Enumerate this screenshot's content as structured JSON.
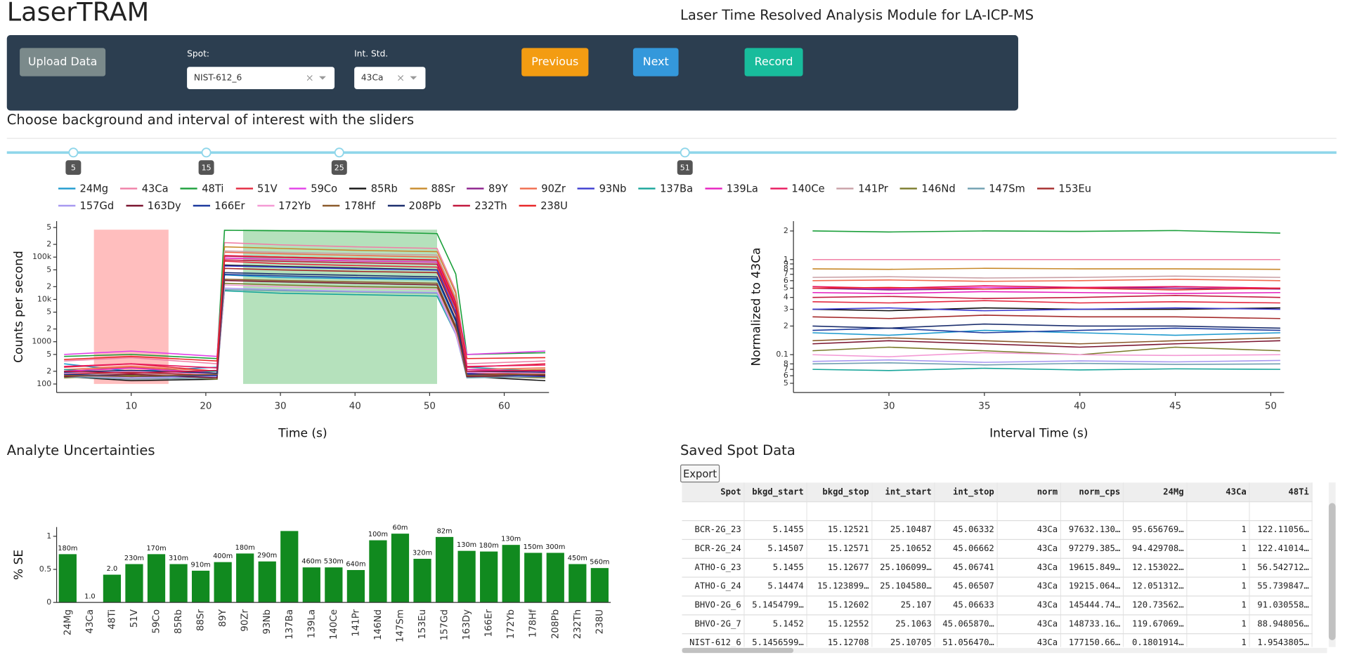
{
  "header": {
    "title": "LaserTRAM",
    "subtitle": "Laser Time Resolved Analysis Module for LA-ICP-MS"
  },
  "controls": {
    "upload": "Upload Data",
    "spot_label": "Spot:",
    "spot_value": "NIST-612_6",
    "int_std_label": "Int. Std.",
    "int_std_value": "43Ca",
    "previous": "Previous",
    "next": "Next",
    "record": "Record"
  },
  "instructions": "Choose background and interval of interest with the sliders",
  "slider": {
    "range": [
      0,
      100
    ],
    "values": [
      5,
      15,
      25,
      51
    ],
    "track_color": "#8fd6ea",
    "background_color": "#ffb3b3",
    "interval_color": "#a8dcb0"
  },
  "chart_data": [
    {
      "type": "line",
      "xlabel": "Time (s)",
      "ylabel": "Counts per second",
      "log_y": true,
      "xlim": [
        0,
        66
      ],
      "ylim": [
        63,
        710000
      ],
      "xticks": [
        10,
        20,
        30,
        40,
        50,
        60
      ],
      "yticks": [
        100,
        {
          "value": 200,
          "label": "2"
        },
        {
          "value": 500,
          "label": "5"
        },
        1000,
        {
          "value": 2000,
          "label": "2"
        },
        {
          "value": 5000,
          "label": "5"
        },
        {
          "value": 10000,
          "label": "10k"
        },
        {
          "value": 20000,
          "label": "2"
        },
        {
          "value": 50000,
          "label": "5"
        },
        {
          "value": 100000,
          "label": "100k"
        },
        {
          "value": 200000,
          "label": "2"
        },
        {
          "value": 500000,
          "label": "5"
        }
      ],
      "x": [
        1,
        10,
        21.5,
        22.5,
        30,
        40,
        51,
        53.5,
        55,
        65.5
      ],
      "series": [
        {
          "name": "24Mg",
          "color": "#1f9bcf",
          "values": [
            300,
            200,
            250,
            38000,
            33000,
            31000,
            29000,
            3000,
            250,
            200
          ]
        },
        {
          "name": "43Ca",
          "color": "#f07fa6",
          "values": [
            350,
            420,
            300,
            220000,
            195000,
            175000,
            160000,
            16000,
            300,
            350
          ]
        },
        {
          "name": "48Ti",
          "color": "#1a9f3a",
          "values": [
            450,
            500,
            400,
            430000,
            420000,
            400000,
            360000,
            40000,
            500,
            550
          ]
        },
        {
          "name": "51V",
          "color": "#e3283f",
          "values": [
            250,
            300,
            200,
            80000,
            70000,
            63000,
            58000,
            6000,
            250,
            300
          ]
        },
        {
          "name": "59Co",
          "color": "#e23ee8",
          "values": [
            500,
            600,
            450,
            110000,
            100000,
            92000,
            85000,
            9000,
            500,
            600
          ]
        },
        {
          "name": "85Rb",
          "color": "#111111",
          "values": [
            150,
            120,
            130,
            65000,
            60000,
            55000,
            50000,
            5000,
            150,
            120
          ]
        },
        {
          "name": "88Sr",
          "color": "#c88a2b",
          "values": [
            200,
            250,
            180,
            175000,
            160000,
            145000,
            135000,
            14000,
            200,
            220
          ]
        },
        {
          "name": "89Y",
          "color": "#8b1e8b",
          "values": [
            180,
            200,
            150,
            105000,
            98000,
            90000,
            84000,
            8000,
            180,
            160
          ]
        },
        {
          "name": "90Zr",
          "color": "#f06a4c",
          "values": [
            220,
            260,
            200,
            130000,
            120000,
            110000,
            100000,
            10000,
            220,
            240
          ]
        },
        {
          "name": "93Nb",
          "color": "#3b3bd0",
          "values": [
            180,
            150,
            160,
            62000,
            58000,
            53000,
            49000,
            5000,
            180,
            150
          ]
        },
        {
          "name": "137Ba",
          "color": "#17a59a",
          "values": [
            220,
            180,
            200,
            16000,
            14000,
            13000,
            12000,
            1500,
            200,
            180
          ]
        },
        {
          "name": "139La",
          "color": "#e61fbf",
          "values": [
            200,
            240,
            180,
            95000,
            88000,
            81000,
            76000,
            7500,
            220,
            200
          ]
        },
        {
          "name": "140Ce",
          "color": "#e8175d",
          "values": [
            260,
            300,
            240,
            108000,
            100000,
            92000,
            86000,
            8500,
            260,
            280
          ]
        },
        {
          "name": "141Pr",
          "color": "#c9a0a6",
          "values": [
            160,
            180,
            150,
            140000,
            130000,
            120000,
            112000,
            11000,
            170,
            160
          ]
        },
        {
          "name": "146Nd",
          "color": "#7a7a2a",
          "values": [
            140,
            160,
            130,
            24000,
            22000,
            20000,
            19000,
            2000,
            150,
            140
          ]
        },
        {
          "name": "147Sm",
          "color": "#6f9fb0",
          "values": [
            150,
            130,
            140,
            17000,
            16000,
            15000,
            14000,
            1600,
            140,
            150
          ]
        },
        {
          "name": "153Eu",
          "color": "#a52a2a",
          "values": [
            170,
            190,
            160,
            54000,
            50000,
            46000,
            43000,
            4300,
            170,
            180
          ]
        },
        {
          "name": "157Gd",
          "color": "#a899f0",
          "values": [
            160,
            140,
            150,
            18500,
            17000,
            15500,
            14500,
            1500,
            160,
            150
          ]
        },
        {
          "name": "163Dy",
          "color": "#7a1530",
          "values": [
            150,
            170,
            140,
            28000,
            26000,
            24000,
            22000,
            2200,
            150,
            160
          ]
        },
        {
          "name": "166Er",
          "color": "#1d3a9e",
          "values": [
            170,
            150,
            160,
            39000,
            36000,
            33000,
            31000,
            3100,
            170,
            150
          ]
        },
        {
          "name": "172Yb",
          "color": "#f49ad5",
          "values": [
            180,
            200,
            170,
            22000,
            20000,
            18500,
            17000,
            1700,
            190,
            180
          ]
        },
        {
          "name": "178Hf",
          "color": "#8b5a2b",
          "values": [
            160,
            150,
            170,
            30000,
            28000,
            26000,
            24000,
            2400,
            160,
            170
          ]
        },
        {
          "name": "208Pb",
          "color": "#1c2f6e",
          "values": [
            190,
            210,
            180,
            43000,
            40000,
            37000,
            34000,
            3400,
            200,
            190
          ]
        },
        {
          "name": "232Th",
          "color": "#c2193f",
          "values": [
            200,
            180,
            210,
            86000,
            80000,
            74000,
            68000,
            6800,
            200,
            210
          ]
        },
        {
          "name": "238U",
          "color": "#e8292a",
          "values": [
            380,
            450,
            350,
            108000,
            100000,
            93000,
            86000,
            8600,
            400,
            420
          ]
        }
      ]
    },
    {
      "type": "line",
      "xlabel": "Interval Time (s)",
      "ylabel": "Normalized to 43Ca",
      "log_y": true,
      "xlim": [
        25,
        50.7
      ],
      "ylim": [
        0.04,
        2.54
      ],
      "xticks": [
        30,
        35,
        40,
        45,
        50
      ],
      "yticks": [
        {
          "value": 0.05,
          "label": "5"
        },
        {
          "value": 0.06,
          "label": "6"
        },
        {
          "value": 0.07,
          "label": "7"
        },
        {
          "value": 0.08,
          "label": "8"
        },
        0.1,
        {
          "value": 0.2,
          "label": "2"
        },
        {
          "value": 0.3,
          "label": "3"
        },
        {
          "value": 0.4,
          "label": "4"
        },
        {
          "value": 0.5,
          "label": "5"
        },
        {
          "value": 0.6,
          "label": "6"
        },
        {
          "value": 0.7,
          "label": "7"
        },
        {
          "value": 0.8,
          "label": "8"
        },
        {
          "value": 0.9,
          "label": "9"
        },
        1,
        2
      ],
      "x": [
        26,
        30,
        35,
        40,
        45,
        50.5
      ],
      "series": [
        {
          "name": "24Mg",
          "color": "#1f9bcf",
          "values": [
            0.17,
            0.16,
            0.18,
            0.17,
            0.16,
            0.17
          ]
        },
        {
          "name": "43Ca",
          "color": "#f07fa6",
          "values": [
            1,
            1,
            1,
            1,
            1,
            1
          ]
        },
        {
          "name": "48Ti",
          "color": "#1a9f3a",
          "values": [
            2.0,
            1.95,
            2.0,
            1.98,
            2.02,
            1.9
          ]
        },
        {
          "name": "51V",
          "color": "#e3283f",
          "values": [
            0.36,
            0.35,
            0.37,
            0.35,
            0.36,
            0.35
          ]
        },
        {
          "name": "59Co",
          "color": "#e23ee8",
          "values": [
            0.5,
            0.49,
            0.51,
            0.5,
            0.52,
            0.5
          ]
        },
        {
          "name": "85Rb",
          "color": "#111111",
          "values": [
            0.3,
            0.29,
            0.31,
            0.3,
            0.3,
            0.31
          ]
        },
        {
          "name": "88Sr",
          "color": "#c88a2b",
          "values": [
            0.8,
            0.79,
            0.81,
            0.8,
            0.8,
            0.79
          ]
        },
        {
          "name": "89Y",
          "color": "#8b1e8b",
          "values": [
            0.5,
            0.48,
            0.49,
            0.51,
            0.5,
            0.49
          ]
        },
        {
          "name": "90Zr",
          "color": "#f06a4c",
          "values": [
            0.6,
            0.61,
            0.59,
            0.6,
            0.62,
            0.6
          ]
        },
        {
          "name": "93Nb",
          "color": "#3b3bd0",
          "values": [
            0.3,
            0.31,
            0.29,
            0.3,
            0.31,
            0.3
          ]
        },
        {
          "name": "137Ba",
          "color": "#17a59a",
          "values": [
            0.07,
            0.068,
            0.072,
            0.069,
            0.071,
            0.07
          ]
        },
        {
          "name": "139La",
          "color": "#e61fbf",
          "values": [
            0.45,
            0.44,
            0.46,
            0.45,
            0.44,
            0.45
          ]
        },
        {
          "name": "140Ce",
          "color": "#e8175d",
          "values": [
            0.52,
            0.5,
            0.53,
            0.51,
            0.52,
            0.5
          ]
        },
        {
          "name": "141Pr",
          "color": "#c9a0a6",
          "values": [
            0.65,
            0.66,
            0.64,
            0.65,
            0.67,
            0.65
          ]
        },
        {
          "name": "146Nd",
          "color": "#7a7a2a",
          "values": [
            0.11,
            0.12,
            0.11,
            0.1,
            0.12,
            0.11
          ]
        },
        {
          "name": "147Sm",
          "color": "#6f9fb0",
          "values": [
            0.08,
            0.082,
            0.078,
            0.081,
            0.079,
            0.08
          ]
        },
        {
          "name": "153Eu",
          "color": "#a52a2a",
          "values": [
            0.25,
            0.24,
            0.26,
            0.25,
            0.25,
            0.24
          ]
        },
        {
          "name": "157Gd",
          "color": "#a899f0",
          "values": [
            0.085,
            0.088,
            0.083,
            0.086,
            0.084,
            0.087
          ]
        },
        {
          "name": "163Dy",
          "color": "#7a1530",
          "values": [
            0.13,
            0.14,
            0.13,
            0.12,
            0.13,
            0.14
          ]
        },
        {
          "name": "166Er",
          "color": "#1d3a9e",
          "values": [
            0.18,
            0.19,
            0.17,
            0.18,
            0.19,
            0.18
          ]
        },
        {
          "name": "172Yb",
          "color": "#f49ad5",
          "values": [
            0.1,
            0.095,
            0.105,
            0.1,
            0.098,
            0.1
          ]
        },
        {
          "name": "178Hf",
          "color": "#8b5a2b",
          "values": [
            0.14,
            0.15,
            0.14,
            0.13,
            0.14,
            0.15
          ]
        },
        {
          "name": "208Pb",
          "color": "#1c2f6e",
          "values": [
            0.2,
            0.19,
            0.21,
            0.2,
            0.2,
            0.19
          ]
        },
        {
          "name": "232Th",
          "color": "#c2193f",
          "values": [
            0.4,
            0.41,
            0.39,
            0.4,
            0.42,
            0.4
          ]
        },
        {
          "name": "238U",
          "color": "#e8292a",
          "values": [
            0.5,
            0.51,
            0.49,
            0.5,
            0.48,
            0.5
          ]
        }
      ]
    },
    {
      "type": "bar",
      "title": "Analyte Uncertainties",
      "ylabel": "% SE",
      "color": "#118a1f",
      "ylim": [
        0,
        1.14
      ],
      "yticks": [
        0,
        0.5,
        1
      ],
      "categories": [
        "24Mg",
        "43Ca",
        "48Ti",
        "51V",
        "59Co",
        "85Rb",
        "88Sr",
        "89Y",
        "90Zr",
        "93Nb",
        "137Ba",
        "139La",
        "140Ce",
        "141Pr",
        "146Nd",
        "147Sm",
        "153Eu",
        "157Gd",
        "163Dy",
        "166Er",
        "172Yb",
        "178Hf",
        "208Pb",
        "232Th",
        "238U"
      ],
      "values": [
        0.73,
        0,
        0.42,
        0.58,
        0.73,
        0.58,
        0.48,
        0.61,
        0.74,
        0.62,
        1.08,
        0.53,
        0.53,
        0.49,
        0.94,
        1.04,
        0.66,
        0.99,
        0.78,
        0.77,
        0.87,
        0.75,
        0.75,
        0.58,
        0.52
      ],
      "bar_annotations": [
        "180m",
        "1.0",
        "2.0",
        "230m",
        "170m",
        "310m",
        "910m",
        "400m",
        "180m",
        "290m",
        null,
        "460m",
        "530m",
        "640m",
        "100m",
        "60m",
        "320m",
        "82m",
        "130m",
        "180m",
        "130m",
        "150m",
        "300m",
        "450m",
        "560m"
      ]
    }
  ],
  "table": {
    "title": "Saved Spot Data",
    "export": "Export",
    "columns": [
      "Spot",
      "bkgd_start",
      "bkgd_stop",
      "int_start",
      "int_stop",
      "norm",
      "norm_cps",
      "24Mg",
      "43Ca",
      "48Ti"
    ],
    "rows": [
      [
        "BCR-2G_23",
        "5.1455",
        "15.12521",
        "25.10487",
        "45.06332",
        "43Ca",
        "97632.130…",
        "95.656769…",
        "1",
        "122.11056…"
      ],
      [
        "BCR-2G_24",
        "5.14507",
        "15.12571",
        "25.10652",
        "45.06662",
        "43Ca",
        "97279.385…",
        "94.429708…",
        "1",
        "122.41014…"
      ],
      [
        "ATHO-G_23",
        "5.1455",
        "15.12677",
        "25.106099…",
        "45.06741",
        "43Ca",
        "19615.849…",
        "12.153022…",
        "1",
        "56.542712…"
      ],
      [
        "ATHO-G_24",
        "5.14474",
        "15.123899…",
        "25.104580…",
        "45.06507",
        "43Ca",
        "19215.064…",
        "12.051312…",
        "1",
        "55.739847…"
      ],
      [
        "BHVO-2G_6",
        "5.1454799…",
        "15.12602",
        "25.107",
        "45.06633",
        "43Ca",
        "145444.74…",
        "120.73562…",
        "1",
        "91.030558…"
      ],
      [
        "BHVO-2G_7",
        "5.1452",
        "15.12552",
        "25.1063",
        "45.065870…",
        "43Ca",
        "148733.16…",
        "119.67069…",
        "1",
        "88.948056…"
      ],
      [
        "NIST-612_6",
        "5.1456599…",
        "15.12708",
        "25.10705",
        "51.056470…",
        "43Ca",
        "177150.66…",
        "0.1801914…",
        "1",
        "1.9543805…"
      ]
    ]
  }
}
